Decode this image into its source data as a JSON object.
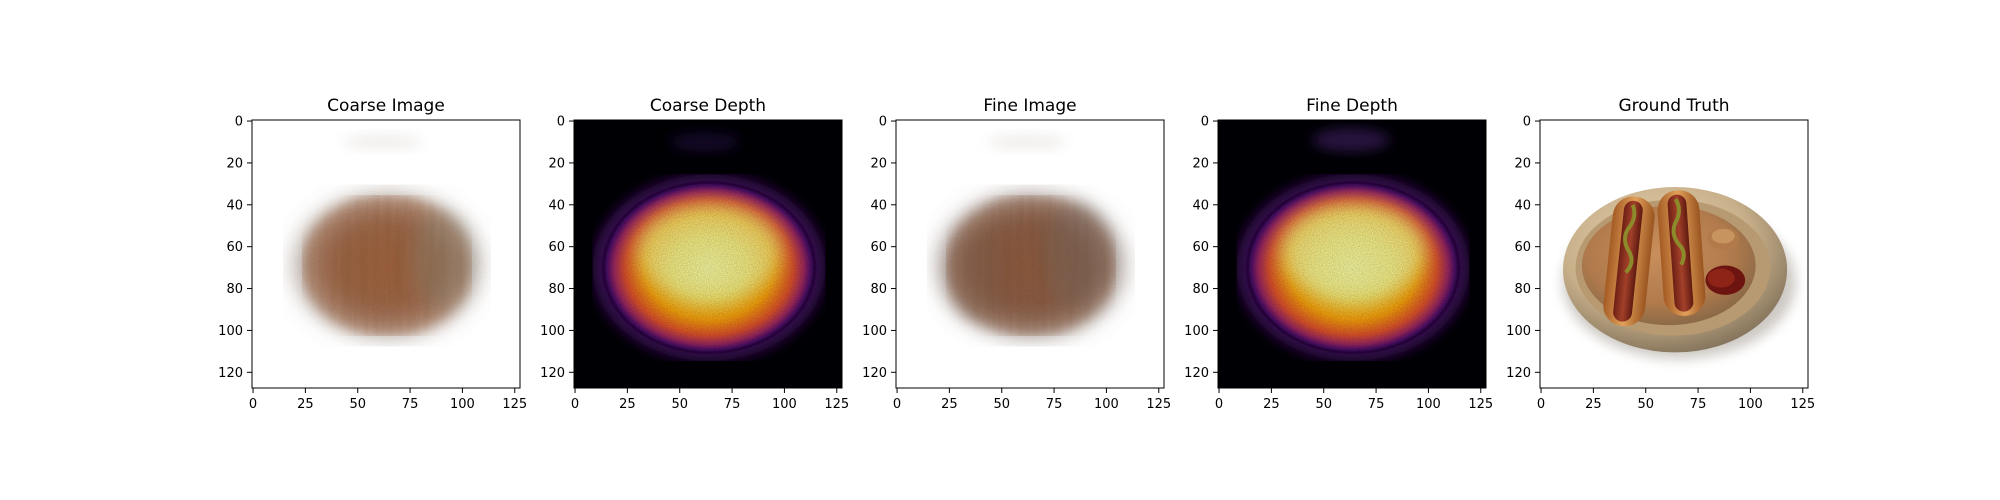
{
  "figure": {
    "panels": [
      {
        "title": "Coarse Image",
        "kind": "image-blur"
      },
      {
        "title": "Coarse Depth",
        "kind": "depth"
      },
      {
        "title": "Fine Image",
        "kind": "image-blur-fine"
      },
      {
        "title": "Fine Depth",
        "kind": "depth-fine"
      },
      {
        "title": "Ground Truth",
        "kind": "ground-truth"
      }
    ]
  },
  "chart_data": {
    "type": "heatmap",
    "panels": [
      "Coarse Image",
      "Coarse Depth",
      "Fine Image",
      "Fine Depth",
      "Ground Truth"
    ],
    "image_size": [
      128,
      128
    ],
    "xlim": [
      0,
      127
    ],
    "ylim": [
      127,
      0
    ],
    "xticks": [
      0,
      25,
      50,
      75,
      100,
      125
    ],
    "yticks": [
      0,
      20,
      40,
      60,
      80,
      100,
      120
    ],
    "depth_colormap": "inferno",
    "ground_truth_subject": "two hot dogs with mustard on a plate with ketchup",
    "colors": {
      "blur_brown": "#a0613a",
      "depth_dark": "#000004",
      "depth_hot": "#fcffa4",
      "plate": "#cdb99a",
      "bun": "#c47a3a",
      "sausage": "#8a2d1e",
      "ketchup": "#7a1a14"
    }
  }
}
